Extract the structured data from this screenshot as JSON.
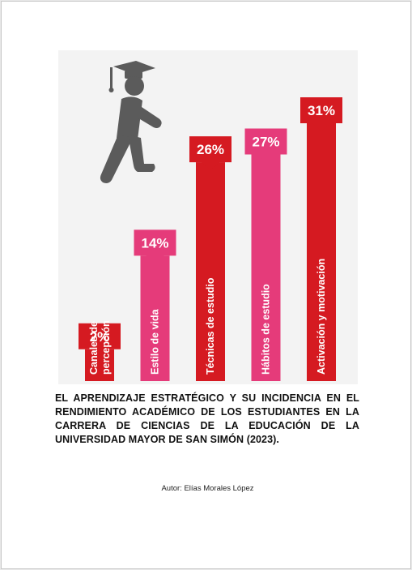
{
  "colors": {
    "dark_red": "#d51a21",
    "pink": "#e53b7a",
    "figure": "#5b5b5b",
    "background": "#f3f3f3"
  },
  "chart_data": {
    "type": "bar",
    "categories": [
      "Canales de percepción",
      "Estilo de vida",
      "Técnicas de estudio",
      "Hábitos de estudio",
      "Activación y motivación"
    ],
    "category_lines": [
      [
        "Canales de",
        "percepción"
      ],
      [
        "Estilo de vida"
      ],
      [
        "Técnicas de estudio"
      ],
      [
        "Hábitos de estudio"
      ],
      [
        "Activación y motivación"
      ]
    ],
    "values": [
      2,
      14,
      26,
      27,
      31
    ],
    "value_labels": [
      "2%",
      "14%",
      "26%",
      "27%",
      "31%"
    ],
    "bar_colors": [
      "#d51a21",
      "#e53b7a",
      "#d51a21",
      "#e53b7a",
      "#d51a21"
    ],
    "icons": [
      "graduate-climbing-stairs-icon"
    ]
  },
  "document": {
    "title": "EL APRENDIZAJE ESTRATÉGICO Y SU INCIDENCIA EN EL RENDIMIENTO ACADÉMICO DE LOS ESTUDIANTES EN LA CARRERA DE CIENCIAS DE LA EDUCACIÓN DE LA UNIVERSIDAD MAYOR DE SAN SIMÓN (2023).",
    "author": "Autor: Elías Morales López"
  }
}
